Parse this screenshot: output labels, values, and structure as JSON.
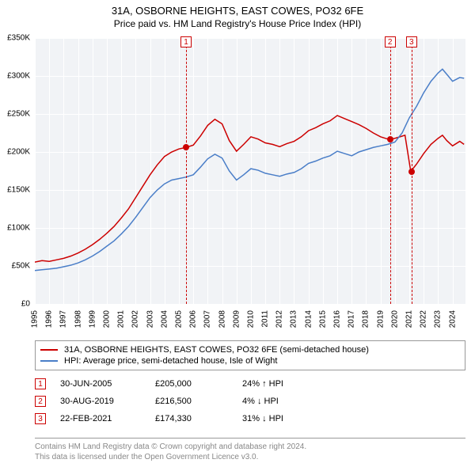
{
  "title": "31A, OSBORNE HEIGHTS, EAST COWES, PO32 6FE",
  "subtitle": "Price paid vs. HM Land Registry's House Price Index (HPI)",
  "chart": {
    "type": "line",
    "background_color": "#f1f3f6",
    "grid_color": "#ffffff",
    "xlim": [
      1995,
      2024.9
    ],
    "ylim": [
      0,
      350000
    ],
    "ytick_step": 50000,
    "y_ticks": [
      "£0",
      "£50K",
      "£100K",
      "£150K",
      "£200K",
      "£250K",
      "£300K",
      "£350K"
    ],
    "x_ticks": [
      "1995",
      "1996",
      "1997",
      "1998",
      "1999",
      "2000",
      "2001",
      "2002",
      "2003",
      "2004",
      "2005",
      "2006",
      "2007",
      "2008",
      "2009",
      "2010",
      "2011",
      "2012",
      "2013",
      "2014",
      "2015",
      "2016",
      "2017",
      "2018",
      "2019",
      "2020",
      "2021",
      "2022",
      "2023",
      "2024"
    ],
    "tick_fontsize": 10,
    "series": [
      {
        "name": "property",
        "label": "31A, OSBORNE HEIGHTS, EAST COWES, PO32 6FE (semi-detached house)",
        "color": "#cc0000",
        "line_width": 1.5,
        "data": [
          [
            1995,
            55000
          ],
          [
            1995.5,
            57000
          ],
          [
            1996,
            56000
          ],
          [
            1996.5,
            58000
          ],
          [
            1997,
            60000
          ],
          [
            1997.5,
            63000
          ],
          [
            1998,
            67000
          ],
          [
            1998.5,
            72000
          ],
          [
            1999,
            78000
          ],
          [
            1999.5,
            85000
          ],
          [
            2000,
            93000
          ],
          [
            2000.5,
            102000
          ],
          [
            2001,
            113000
          ],
          [
            2001.5,
            125000
          ],
          [
            2002,
            140000
          ],
          [
            2002.5,
            155000
          ],
          [
            2003,
            170000
          ],
          [
            2003.5,
            183000
          ],
          [
            2004,
            194000
          ],
          [
            2004.5,
            200000
          ],
          [
            2005,
            204000
          ],
          [
            2005.5,
            206000
          ],
          [
            2006,
            209000
          ],
          [
            2006.5,
            221000
          ],
          [
            2007,
            235000
          ],
          [
            2007.5,
            243000
          ],
          [
            2008,
            237000
          ],
          [
            2008.5,
            215000
          ],
          [
            2009,
            201000
          ],
          [
            2009.5,
            210000
          ],
          [
            2010,
            220000
          ],
          [
            2010.5,
            217000
          ],
          [
            2011,
            212000
          ],
          [
            2011.5,
            210000
          ],
          [
            2012,
            207000
          ],
          [
            2012.5,
            211000
          ],
          [
            2013,
            214000
          ],
          [
            2013.5,
            220000
          ],
          [
            2014,
            228000
          ],
          [
            2014.5,
            232000
          ],
          [
            2015,
            237000
          ],
          [
            2015.5,
            241000
          ],
          [
            2016,
            248000
          ],
          [
            2016.5,
            244000
          ],
          [
            2017,
            240000
          ],
          [
            2017.5,
            236000
          ],
          [
            2018,
            231000
          ],
          [
            2018.5,
            225000
          ],
          [
            2019,
            220000
          ],
          [
            2019.5,
            217000
          ],
          [
            2019.8,
            217000
          ],
          [
            2020,
            218000
          ],
          [
            2020.7,
            222000
          ],
          [
            2021.1,
            174330
          ],
          [
            2021.5,
            184000
          ],
          [
            2022,
            198000
          ],
          [
            2022.5,
            210000
          ],
          [
            2023,
            218000
          ],
          [
            2023.3,
            222000
          ],
          [
            2023.6,
            215000
          ],
          [
            2024,
            208000
          ],
          [
            2024.5,
            214000
          ],
          [
            2024.8,
            210000
          ]
        ]
      },
      {
        "name": "hpi",
        "label": "HPI: Average price, semi-detached house, Isle of Wight",
        "color": "#4a7ec8",
        "line_width": 1.5,
        "data": [
          [
            1995,
            44000
          ],
          [
            1995.5,
            45000
          ],
          [
            1996,
            46000
          ],
          [
            1996.5,
            47000
          ],
          [
            1997,
            49000
          ],
          [
            1997.5,
            51000
          ],
          [
            1998,
            54000
          ],
          [
            1998.5,
            58000
          ],
          [
            1999,
            63000
          ],
          [
            1999.5,
            69000
          ],
          [
            2000,
            76000
          ],
          [
            2000.5,
            83000
          ],
          [
            2001,
            92000
          ],
          [
            2001.5,
            102000
          ],
          [
            2002,
            114000
          ],
          [
            2002.5,
            127000
          ],
          [
            2003,
            140000
          ],
          [
            2003.5,
            150000
          ],
          [
            2004,
            158000
          ],
          [
            2004.5,
            163000
          ],
          [
            2005,
            165000
          ],
          [
            2005.5,
            167000
          ],
          [
            2006,
            170000
          ],
          [
            2006.5,
            180000
          ],
          [
            2007,
            191000
          ],
          [
            2007.5,
            197000
          ],
          [
            2008,
            192000
          ],
          [
            2008.5,
            175000
          ],
          [
            2009,
            163000
          ],
          [
            2009.5,
            170000
          ],
          [
            2010,
            178000
          ],
          [
            2010.5,
            176000
          ],
          [
            2011,
            172000
          ],
          [
            2011.5,
            170000
          ],
          [
            2012,
            168000
          ],
          [
            2012.5,
            171000
          ],
          [
            2013,
            173000
          ],
          [
            2013.5,
            178000
          ],
          [
            2014,
            185000
          ],
          [
            2014.5,
            188000
          ],
          [
            2015,
            192000
          ],
          [
            2015.5,
            195000
          ],
          [
            2016,
            201000
          ],
          [
            2016.5,
            198000
          ],
          [
            2017,
            195000
          ],
          [
            2017.5,
            200000
          ],
          [
            2018,
            203000
          ],
          [
            2018.5,
            206000
          ],
          [
            2019,
            208000
          ],
          [
            2019.5,
            210000
          ],
          [
            2020,
            213000
          ],
          [
            2020.5,
            225000
          ],
          [
            2021,
            245000
          ],
          [
            2021.5,
            260000
          ],
          [
            2022,
            278000
          ],
          [
            2022.5,
            293000
          ],
          [
            2023,
            304000
          ],
          [
            2023.3,
            309000
          ],
          [
            2023.7,
            300000
          ],
          [
            2024,
            293000
          ],
          [
            2024.5,
            298000
          ],
          [
            2024.8,
            297000
          ]
        ]
      }
    ],
    "markers": [
      {
        "n": "1",
        "x": 2005.5,
        "color": "#cc0000",
        "dot_y": 206000
      },
      {
        "n": "2",
        "x": 2019.66,
        "color": "#cc0000",
        "dot_y": 217000
      },
      {
        "n": "3",
        "x": 2021.15,
        "color": "#cc0000",
        "dot_y": 174330
      }
    ]
  },
  "legend": {
    "items": [
      {
        "color": "#cc0000",
        "label": "31A, OSBORNE HEIGHTS, EAST COWES, PO32 6FE (semi-detached house)"
      },
      {
        "color": "#4a7ec8",
        "label": "HPI: Average price, semi-detached house, Isle of Wight"
      }
    ]
  },
  "sales": [
    {
      "n": "1",
      "date": "30-JUN-2005",
      "price": "£205,000",
      "diff": "24% ↑ HPI"
    },
    {
      "n": "2",
      "date": "30-AUG-2019",
      "price": "£216,500",
      "diff": "4% ↓ HPI"
    },
    {
      "n": "3",
      "date": "22-FEB-2021",
      "price": "£174,330",
      "diff": "31% ↓ HPI"
    }
  ],
  "footer": {
    "line1": "Contains HM Land Registry data © Crown copyright and database right 2024.",
    "line2": "This data is licensed under the Open Government Licence v3.0."
  }
}
